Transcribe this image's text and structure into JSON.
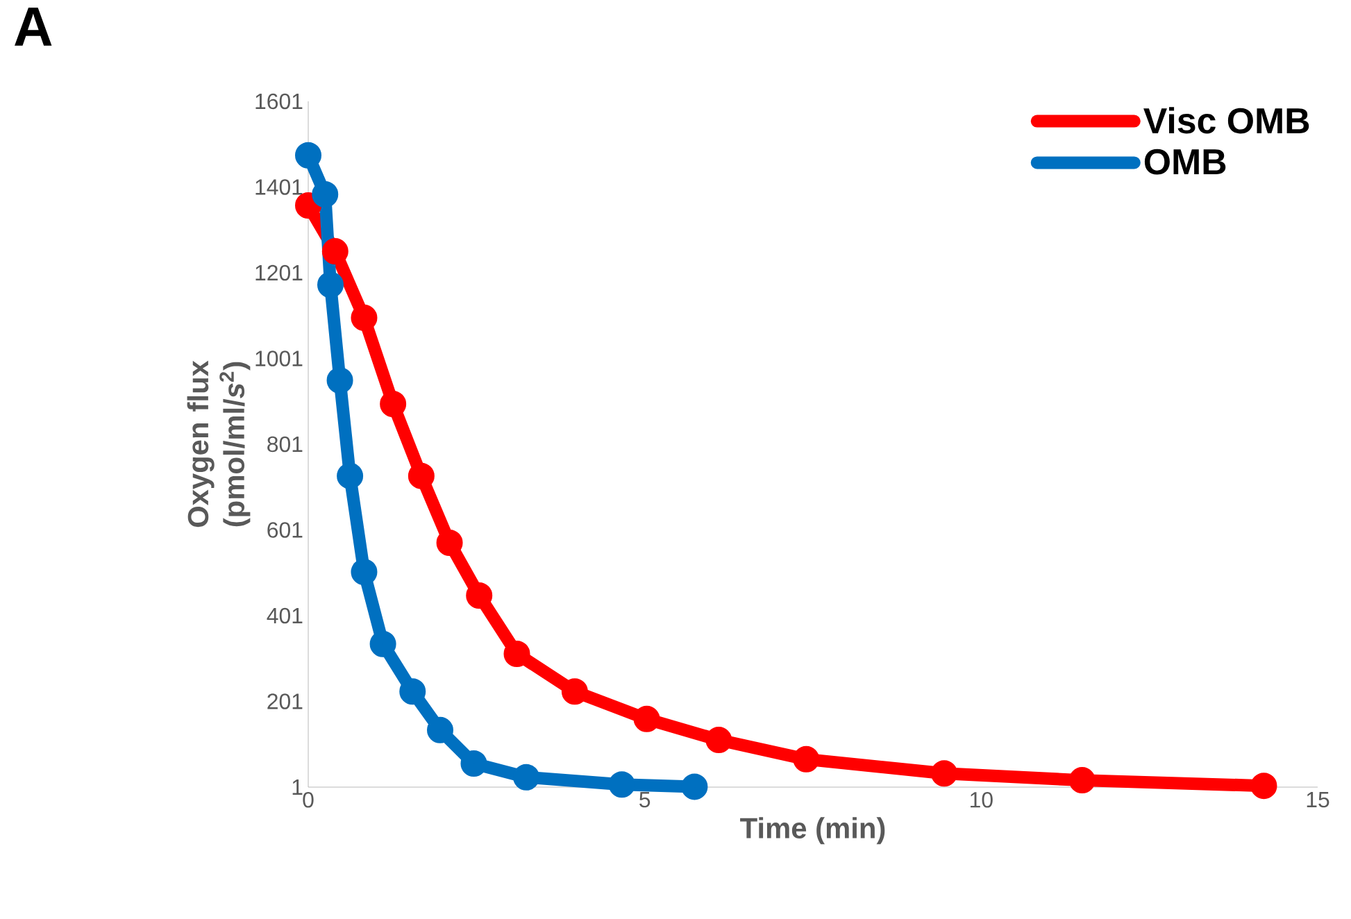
{
  "chart_data": {
    "type": "line",
    "xlabel": "Time (min)",
    "ylabel": "Oxygen flux (pmol/ml/*s*$^{2}$)",
    "annotations": [
      "A"
    ],
    "xlim": [
      0,
      15
    ],
    "xticks": [
      0,
      5,
      10,
      15
    ],
    "ylim": [
      1,
      1601
    ],
    "yticks": [
      1,
      201,
      401,
      601,
      801,
      1001,
      1201,
      1401,
      1601
    ],
    "grid": false,
    "legend": "top right",
    "marker": "circle",
    "series": [
      {
        "name": "Visc OMB",
        "color": "#ff0000",
        "x": [
          0,
          0.4,
          0.83,
          1.26,
          1.68,
          2.1,
          2.54,
          3.1,
          3.96,
          5.03,
          6.1,
          7.4,
          9.45,
          11.5,
          14.2
        ],
        "values": [
          1358,
          1251,
          1096,
          895,
          727,
          571,
          448,
          312,
          224,
          160,
          111,
          66,
          33,
          17,
          4
        ]
      },
      {
        "name": "OMB",
        "color": "#0070c0",
        "x": [
          0,
          0.25,
          0.33,
          0.47,
          0.62,
          0.83,
          1.11,
          1.55,
          1.96,
          2.46,
          3.24,
          4.66,
          5.74
        ],
        "values": [
          1475,
          1384,
          1173,
          950,
          727,
          503,
          335,
          224,
          134,
          56,
          24,
          7,
          2
        ]
      }
    ]
  }
}
